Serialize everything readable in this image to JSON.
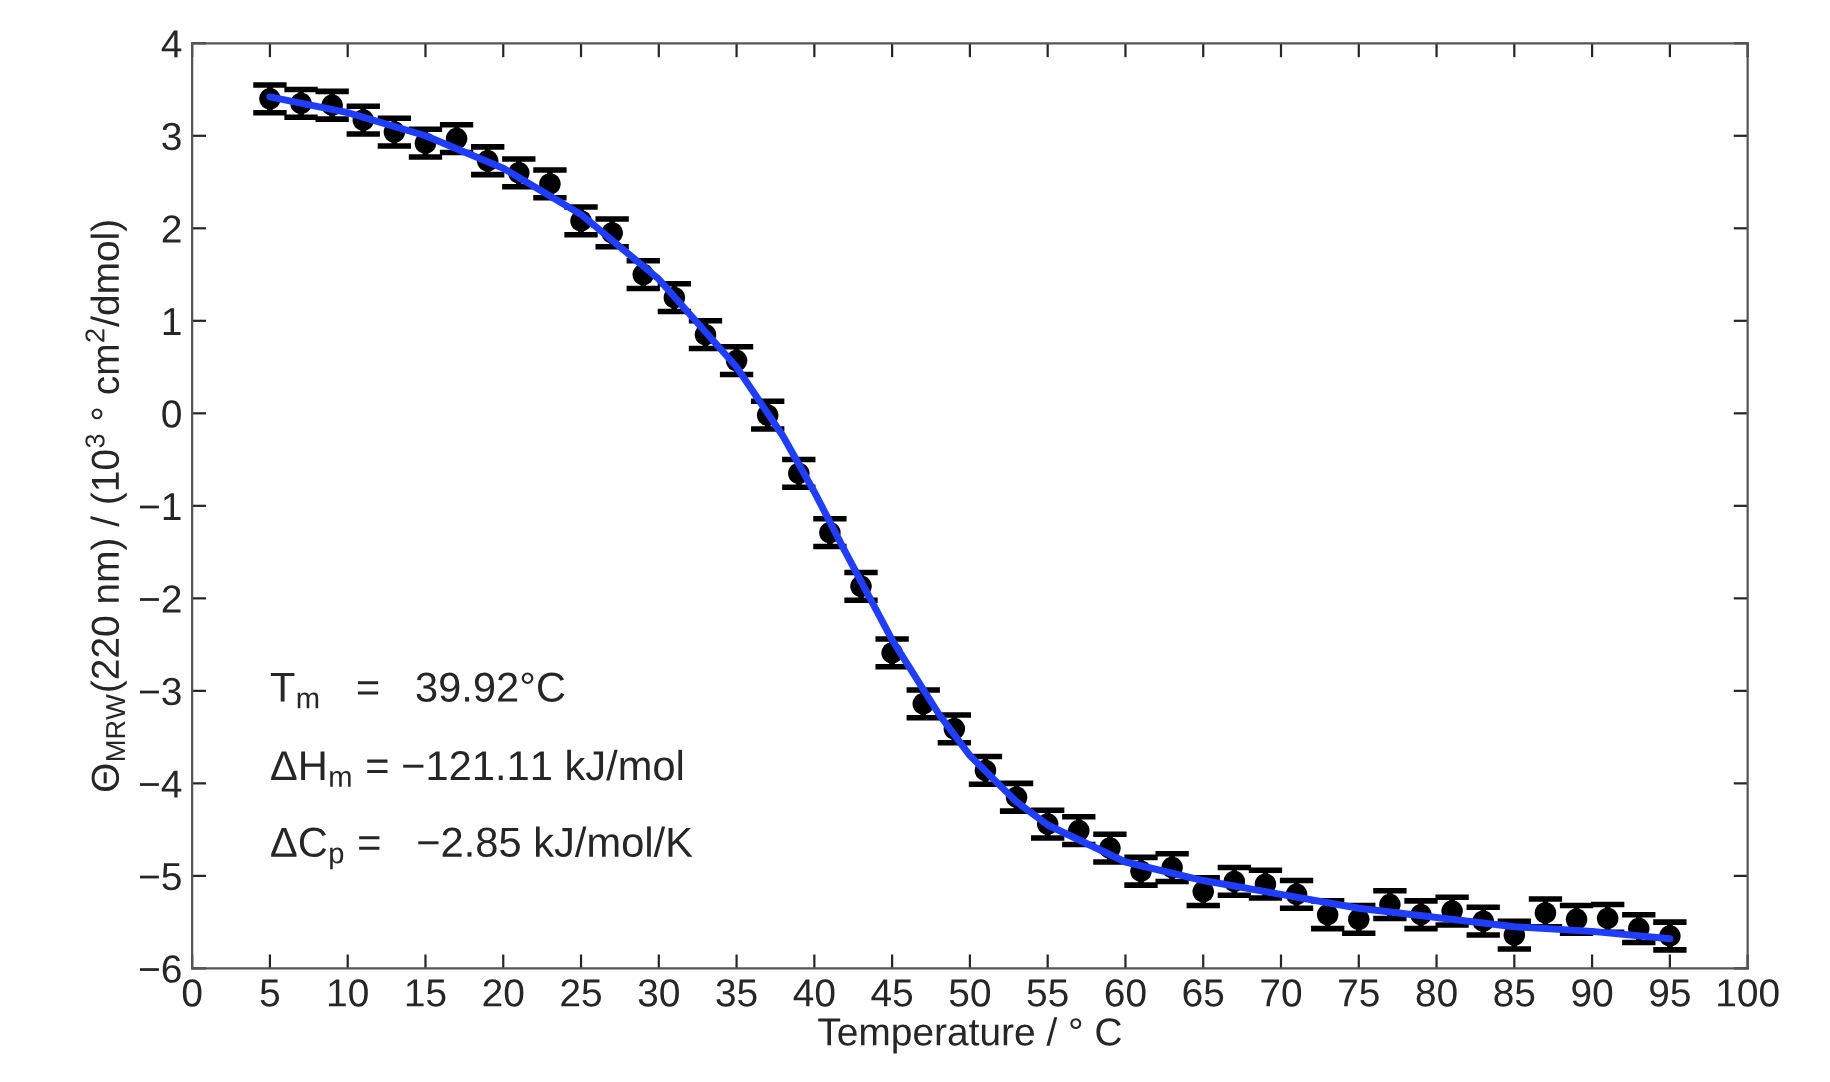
{
  "chart_data": {
    "type": "scatter",
    "xlabel": "Temperature / ° C",
    "ylabel": "Θ$_{MRW}$(220 nm) / (10$^{3}$ ° cm$^{2}$/dmol)",
    "x": [
      5,
      7,
      9,
      11,
      13,
      15,
      17,
      19,
      21,
      23,
      25,
      27,
      29,
      31,
      33,
      35,
      37,
      39,
      41,
      43,
      45,
      47,
      49,
      51,
      53,
      55,
      57,
      59,
      61,
      63,
      65,
      67,
      69,
      71,
      73,
      75,
      77,
      79,
      81,
      83,
      85,
      87,
      89,
      91,
      93,
      95
    ],
    "series": [
      {
        "color": "#000000",
        "marker": "circle",
        "values": [
          3.4,
          3.35,
          3.33,
          3.17,
          3.04,
          2.92,
          2.97,
          2.73,
          2.6,
          2.48,
          2.08,
          1.95,
          1.5,
          1.25,
          0.85,
          0.57,
          -0.02,
          -0.65,
          -1.29,
          -1.87,
          -2.59,
          -3.14,
          -3.41,
          -3.86,
          -4.15,
          -4.44,
          -4.51,
          -4.7,
          -4.95,
          -4.91,
          -5.17,
          -5.06,
          -5.09,
          -5.2,
          -5.42,
          -5.47,
          -5.31,
          -5.42,
          -5.38,
          -5.49,
          -5.64,
          -5.4,
          -5.47,
          -5.46,
          -5.57,
          -5.65
        ],
        "errors": [
          0.15,
          0.15,
          0.15,
          0.15,
          0.15,
          0.15,
          0.15,
          0.15,
          0.15,
          0.15,
          0.15,
          0.15,
          0.15,
          0.15,
          0.15,
          0.15,
          0.15,
          0.15,
          0.15,
          0.15,
          0.15,
          0.15,
          0.15,
          0.15,
          0.15,
          0.15,
          0.15,
          0.15,
          0.15,
          0.15,
          0.15,
          0.15,
          0.15,
          0.15,
          0.15,
          0.15,
          0.15,
          0.15,
          0.15,
          0.15,
          0.15,
          0.15,
          0.15,
          0.15,
          0.15,
          0.15
        ]
      },
      {
        "type": "line",
        "color": "#1f3dff",
        "line_style": "solid",
        "x": [
          5,
          10,
          15,
          20,
          25,
          30,
          35,
          38,
          40,
          42,
          45,
          48,
          50,
          53,
          55,
          60,
          65,
          70,
          75,
          80,
          85,
          90,
          95
        ],
        "values": [
          3.42,
          3.25,
          3.0,
          2.65,
          2.15,
          1.45,
          0.5,
          -0.25,
          -0.85,
          -1.5,
          -2.45,
          -3.25,
          -3.7,
          -4.2,
          -4.45,
          -4.85,
          -5.05,
          -5.2,
          -5.35,
          -5.45,
          -5.55,
          -5.6,
          -5.68
        ]
      }
    ],
    "xlim": [
      0,
      100
    ],
    "xticks": [
      0,
      5,
      10,
      15,
      20,
      25,
      30,
      35,
      40,
      45,
      50,
      55,
      60,
      65,
      70,
      75,
      80,
      85,
      90,
      95,
      100
    ],
    "ylim": [
      -6,
      4
    ],
    "yticks": [
      -6,
      -5,
      -4,
      -3,
      -2,
      -1,
      0,
      1,
      2,
      3,
      4
    ],
    "grid": false,
    "legend": false,
    "annotations": [
      "T$_{m}$   =   39.92°C",
      "ΔH$_{m}$ = −121.11 kJ/mol",
      "ΔC$_{p}$ =   −2.85 kJ/mol/K"
    ]
  }
}
